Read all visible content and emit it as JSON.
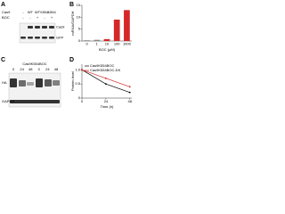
{
  "panels": [
    "A",
    "B",
    "C",
    "D"
  ],
  "blot_a": {
    "header": [
      "Cas9",
      "BOC"
    ],
    "lanes": [
      "-",
      "WT",
      "WT",
      "K554",
      "K554"
    ],
    "boc": [
      "-",
      "-",
      "+",
      "-",
      "+"
    ],
    "rows": [
      "Cas9",
      "GFP"
    ]
  },
  "blot_c": {
    "group": "Cas9K554BOC",
    "times": [
      "0",
      "24",
      "48",
      "0",
      "24",
      "48"
    ],
    "rows": [
      "HA",
      "GAPDH"
    ]
  },
  "chart_data": [
    {
      "type": "bar",
      "ylabel": "mRNA/GAPDH",
      "xlabel": "BOC (μM)",
      "categories": [
        "0",
        "1",
        "10",
        "100",
        "1000"
      ],
      "values": [
        0.3,
        0.5,
        0.8,
        9,
        13
      ],
      "colors": [
        "#888888",
        "#888888",
        "#d62728",
        "#d62728",
        "#d62728"
      ],
      "ylim": [
        0,
        15
      ],
      "yticks": [
        0,
        5,
        10,
        15
      ]
    },
    {
      "type": "line",
      "ylabel": "Protein level",
      "xlabel": "Time (h)",
      "x": [
        0,
        24,
        48
      ],
      "xlim": [
        0,
        50
      ],
      "xticks": [
        0,
        24,
        48
      ],
      "ylim": [
        0,
        1.2
      ],
      "yticks": [
        0,
        {
          "value": 0.5,
          "label": "0.5"
        },
        {
          "value": 1,
          "label": "1.0"
        }
      ],
      "series": [
        {
          "name": "Cas9K554BOC",
          "color": "#000000",
          "values": [
            1,
            0.5,
            0.2
          ]
        },
        {
          "name": "Cas9K554BOC-DK",
          "color": "#d62728",
          "values": [
            1,
            0.7,
            0.4
          ]
        }
      ]
    }
  ]
}
